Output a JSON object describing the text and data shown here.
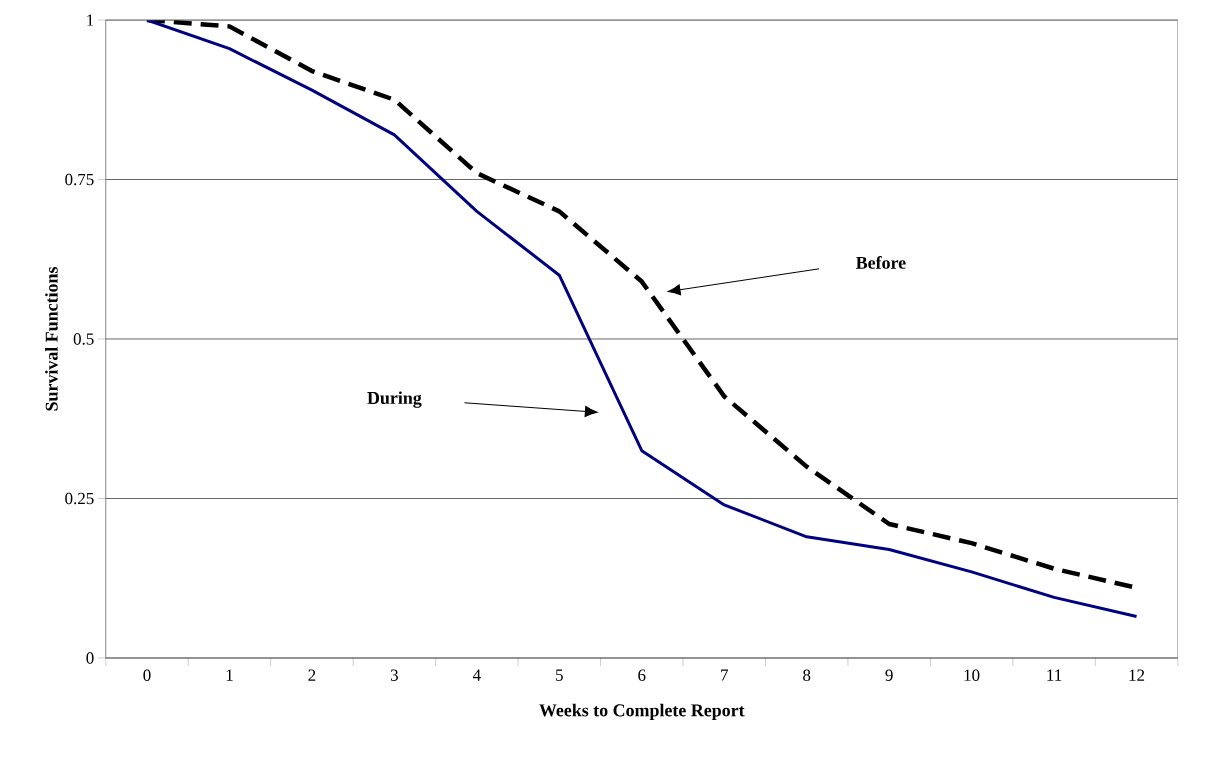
{
  "chart_data": {
    "type": "line",
    "xlabel": "Weeks to Complete Report",
    "ylabel": "Survival Functions",
    "categories": [
      "0",
      "1",
      "2",
      "3",
      "4",
      "5",
      "6",
      "7",
      "8",
      "9",
      "10",
      "11",
      "12"
    ],
    "series": [
      {
        "color": "#000000",
        "line_style": "dashed",
        "values": [
          1,
          0.99,
          0.92,
          0.875,
          0.76,
          0.7,
          0.59,
          0.41,
          0.3,
          0.21,
          0.18,
          0.14,
          0.11
        ]
      },
      {
        "color": "#000080",
        "line_style": "solid",
        "values": [
          1,
          0.955,
          0.89,
          0.82,
          0.7,
          0.6,
          0.325,
          0.24,
          0.19,
          0.17,
          0.135,
          0.095,
          0.065
        ]
      }
    ],
    "ylim": [
      0,
      1
    ],
    "yticks": [
      0,
      0.25,
      0.5,
      0.75,
      1
    ],
    "annotations": [
      "Before",
      "During"
    ],
    "grid": "y",
    "legend": false,
    "marker": "none"
  }
}
